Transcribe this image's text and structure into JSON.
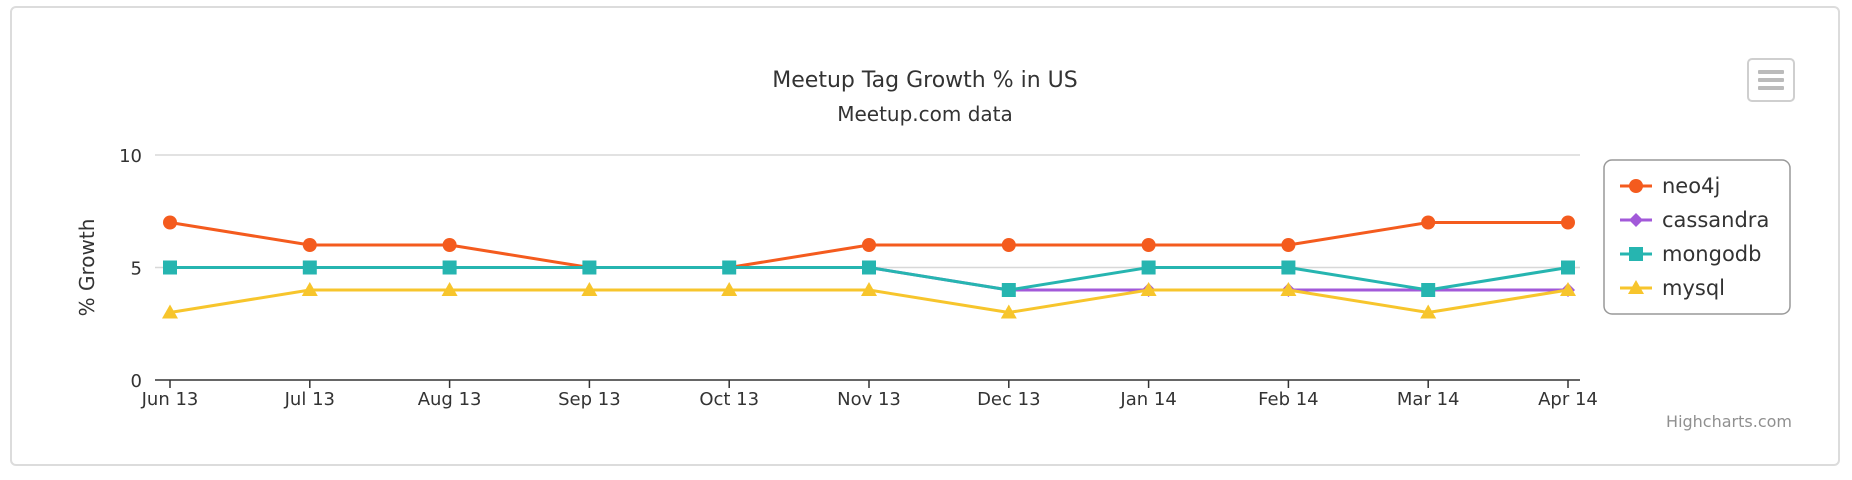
{
  "chart_data": {
    "type": "line",
    "title": "Meetup Tag Growth % in US",
    "subtitle": "Meetup.com data",
    "ylabel": "% Growth",
    "xlabel": "",
    "ylim": [
      0,
      10
    ],
    "yticks": [
      0,
      5,
      10
    ],
    "categories": [
      "Jun 13",
      "Jul 13",
      "Aug 13",
      "Sep 13",
      "Oct 13",
      "Nov 13",
      "Dec 13",
      "Jan 14",
      "Feb 14",
      "Mar 14",
      "Apr 14"
    ],
    "legend_position": "right",
    "series": [
      {
        "name": "neo4j",
        "color": "#f45b1e",
        "marker": "circle",
        "values": [
          7,
          6,
          6,
          5,
          5,
          6,
          6,
          6,
          6,
          7,
          7
        ]
      },
      {
        "name": "cassandra",
        "color": "#a259d9",
        "marker": "diamond",
        "values": [
          5,
          5,
          5,
          5,
          5,
          5,
          4,
          4,
          4,
          4,
          4
        ]
      },
      {
        "name": "mongodb",
        "color": "#26b5b0",
        "marker": "square",
        "values": [
          5,
          5,
          5,
          5,
          5,
          5,
          4,
          5,
          5,
          4,
          5
        ]
      },
      {
        "name": "mysql",
        "color": "#f7c52c",
        "marker": "triangle",
        "values": [
          3,
          4,
          4,
          4,
          4,
          4,
          3,
          4,
          4,
          3,
          4
        ]
      }
    ]
  },
  "credits": "Highcharts.com",
  "menu_icon": "hamburger-menu-icon"
}
